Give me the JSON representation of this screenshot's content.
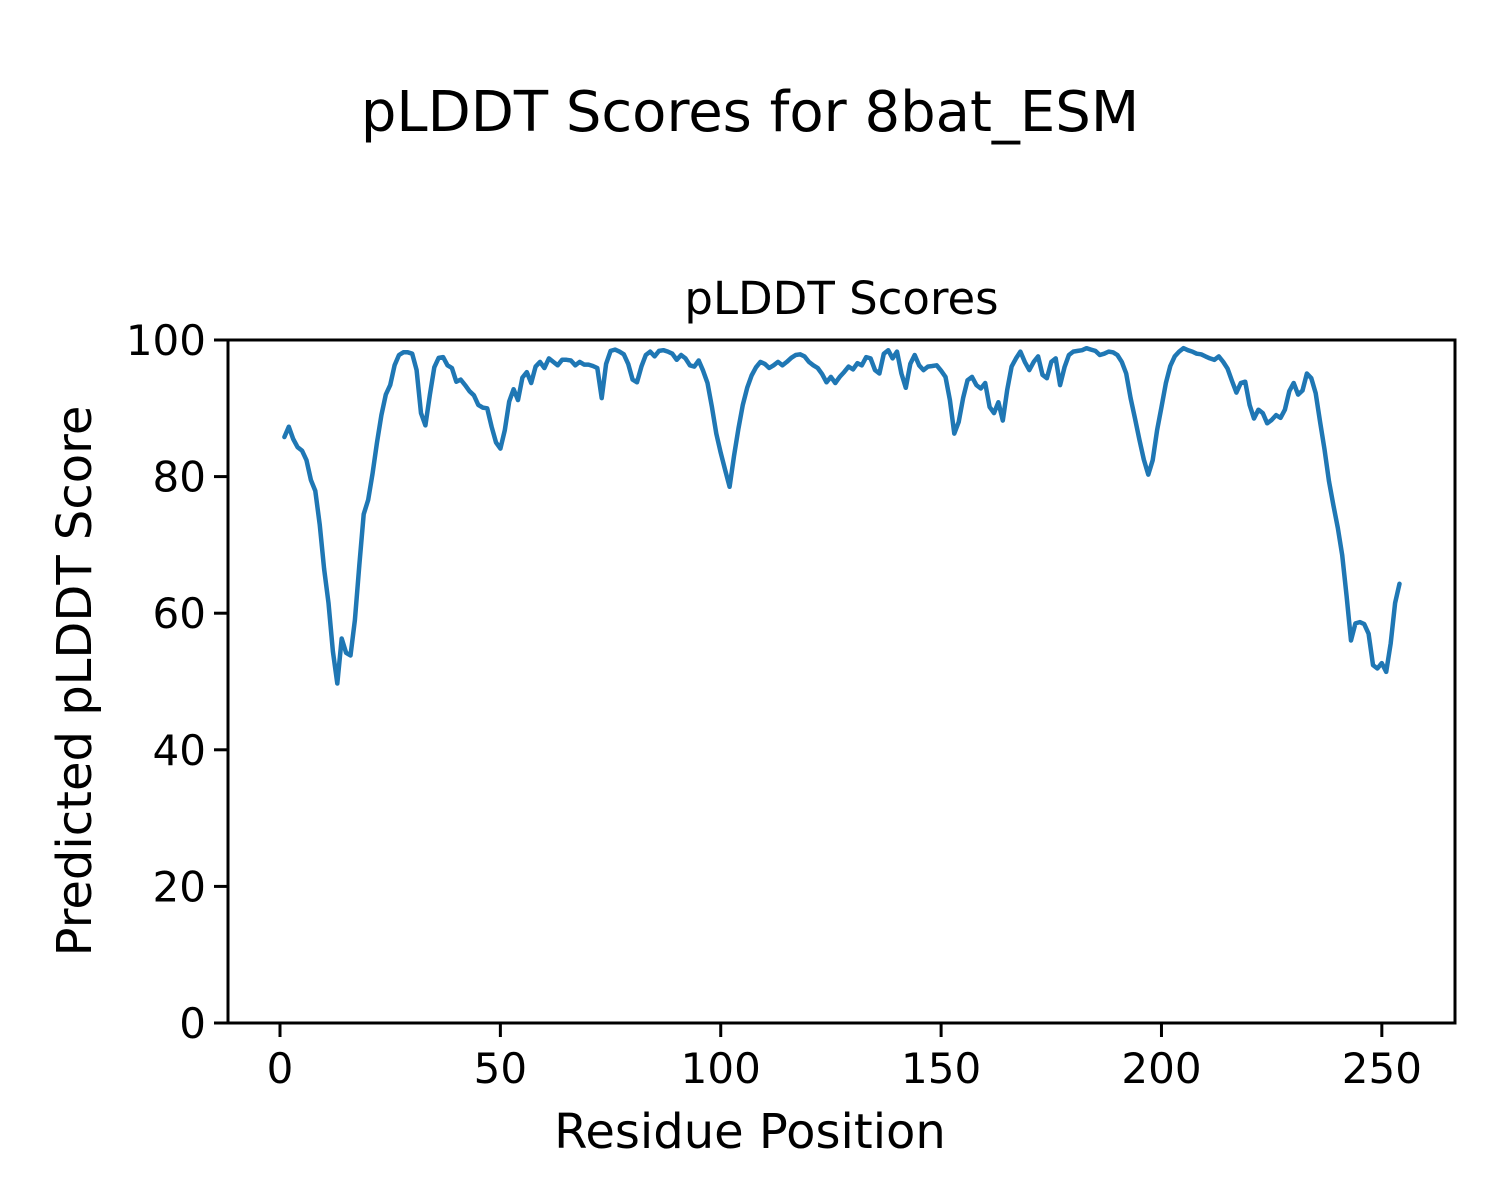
{
  "figure": {
    "suptitle": "pLDDT Scores for 8bat_ESM",
    "background": "#ffffff",
    "text_color": "#000000"
  },
  "chart_data": {
    "type": "line",
    "title": "pLDDT Scores",
    "xlabel": "Residue Position",
    "ylabel": "Predicted pLDDT Score",
    "grid": false,
    "legend": "none",
    "xlim": [
      -11.8,
      266.6
    ],
    "ylim": [
      0,
      100
    ],
    "xticks": [
      0,
      50,
      100,
      150,
      200,
      250
    ],
    "yticks": [
      0,
      20,
      40,
      60,
      80,
      100
    ],
    "series": [
      {
        "name": "pLDDT",
        "color": "#1f77b4",
        "line_width": 4.5,
        "x_start": 1,
        "x_step": 1,
        "values": [
          85.8,
          87.3,
          85.5,
          84.3,
          83.8,
          82.4,
          79.5,
          77.9,
          73.0,
          66.5,
          61.5,
          54.4,
          49.7,
          56.3,
          54.2,
          53.8,
          59.0,
          67.0,
          74.5,
          76.6,
          80.5,
          85.0,
          89.0,
          92.0,
          93.4,
          96.3,
          97.8,
          98.2,
          98.2,
          98.0,
          95.6,
          89.3,
          87.5,
          92.0,
          96.0,
          97.4,
          97.5,
          96.3,
          95.9,
          93.9,
          94.2,
          93.4,
          92.5,
          91.9,
          90.5,
          90.1,
          90.0,
          87.3,
          85.0,
          84.1,
          86.8,
          91.0,
          92.8,
          91.2,
          94.5,
          95.3,
          93.7,
          96.1,
          96.8,
          95.9,
          97.3,
          96.8,
          96.3,
          97.1,
          97.1,
          97.0,
          96.3,
          96.8,
          96.4,
          96.4,
          96.2,
          95.9,
          91.5,
          96.5,
          98.4,
          98.6,
          98.3,
          97.9,
          96.5,
          94.2,
          93.8,
          96.1,
          97.8,
          98.3,
          97.6,
          98.4,
          98.5,
          98.3,
          98.0,
          97.1,
          97.8,
          97.3,
          96.3,
          96.1,
          97.0,
          95.5,
          93.7,
          90.2,
          86.3,
          83.5,
          81.0,
          78.5,
          83.0,
          87.0,
          90.5,
          93.0,
          94.8,
          96.0,
          96.8,
          96.5,
          95.9,
          96.3,
          96.8,
          96.3,
          96.8,
          97.4,
          97.8,
          97.9,
          97.6,
          96.8,
          96.3,
          95.9,
          95.0,
          93.8,
          94.6,
          93.7,
          94.6,
          95.3,
          96.1,
          95.7,
          96.6,
          96.3,
          97.5,
          97.3,
          95.6,
          95.1,
          98.0,
          98.5,
          97.3,
          98.3,
          95.1,
          93.0,
          96.5,
          97.8,
          96.3,
          95.6,
          96.1,
          96.2,
          96.3,
          95.5,
          94.6,
          91.2,
          86.3,
          88.0,
          91.5,
          94.1,
          94.6,
          93.4,
          92.9,
          93.7,
          90.2,
          89.3,
          90.9,
          88.2,
          92.7,
          96.1,
          97.3,
          98.3,
          96.8,
          95.6,
          96.8,
          97.6,
          94.9,
          94.4,
          96.8,
          97.3,
          93.4,
          96.0,
          97.8,
          98.3,
          98.4,
          98.5,
          98.8,
          98.6,
          98.4,
          97.8,
          98.0,
          98.3,
          98.2,
          97.8,
          96.8,
          95.1,
          91.5,
          88.5,
          85.4,
          82.5,
          80.3,
          82.4,
          86.8,
          90.2,
          93.7,
          96.2,
          97.6,
          98.3,
          98.8,
          98.5,
          98.3,
          98.0,
          97.9,
          97.6,
          97.3,
          97.1,
          97.6,
          96.8,
          95.8,
          94.0,
          92.3,
          93.7,
          93.9,
          90.5,
          88.5,
          89.8,
          89.3,
          87.8,
          88.3,
          89.0,
          88.6,
          89.8,
          92.5,
          93.7,
          92.0,
          92.6,
          95.1,
          94.4,
          92.2,
          88.0,
          84.0,
          79.3,
          75.8,
          72.5,
          68.5,
          62.5,
          56.0,
          58.5,
          58.7,
          58.4,
          57.0,
          52.4,
          51.9,
          52.7,
          51.4,
          55.6,
          61.5,
          64.3
        ]
      }
    ]
  }
}
